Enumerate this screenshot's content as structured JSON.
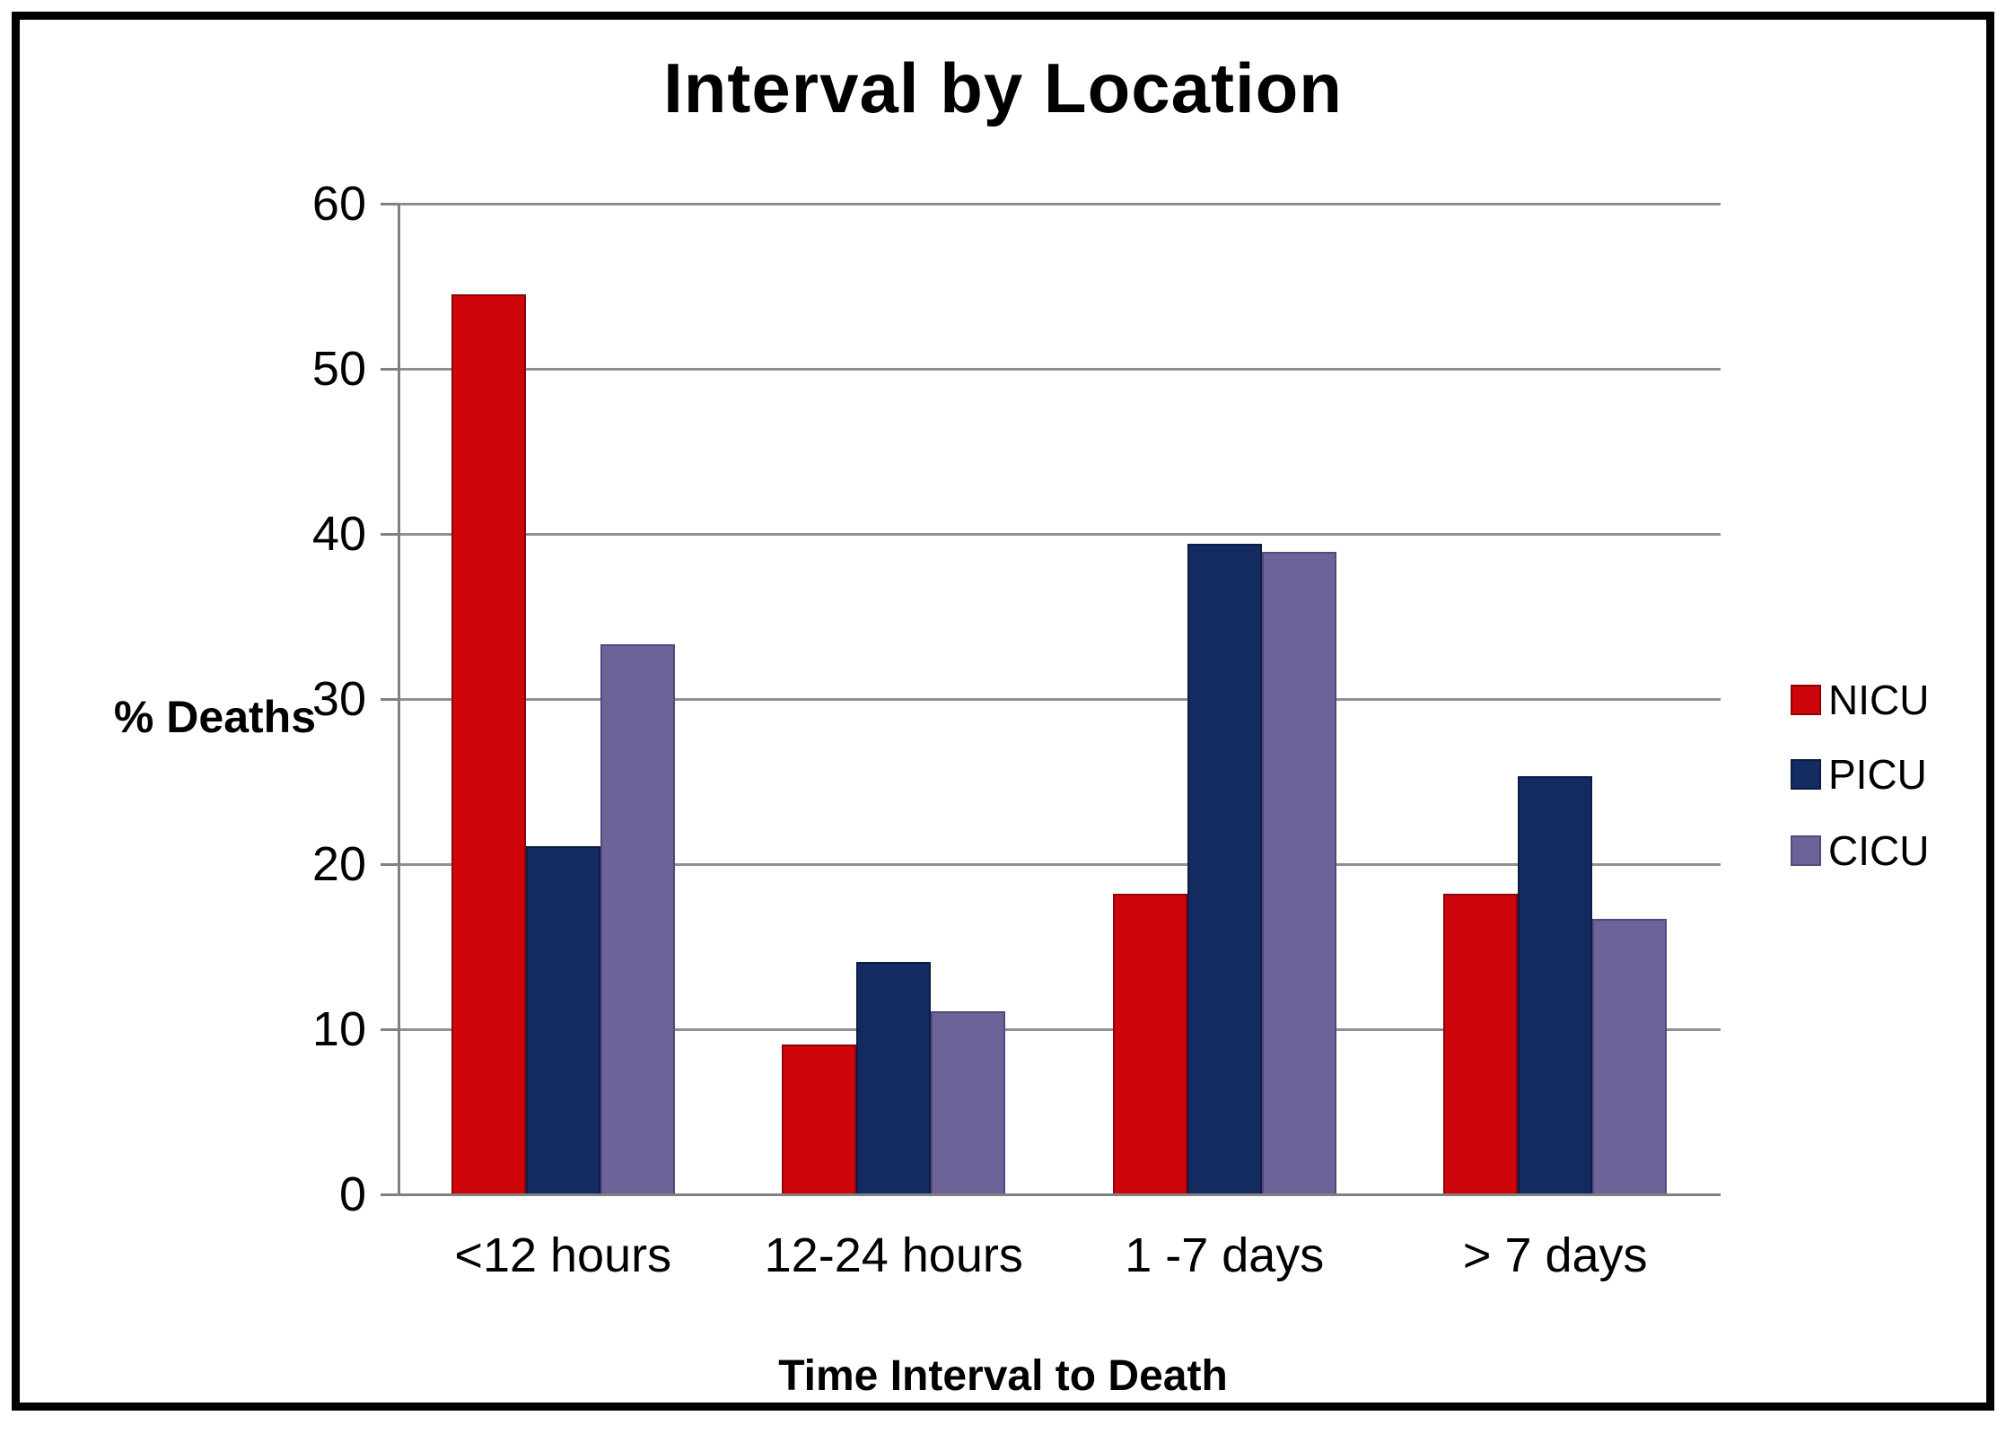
{
  "chart_data": {
    "type": "bar",
    "title": "Interval by Location",
    "xlabel": "Time Interval to Death",
    "ylabel": "% Deaths",
    "categories": [
      "<12 hours",
      "12-24 hours",
      "1 -7 days",
      "> 7 days"
    ],
    "series": [
      {
        "name": "NICU",
        "color": "#CE060C",
        "border": "#8F0408",
        "values": [
          54.5,
          9.1,
          18.2,
          18.2
        ]
      },
      {
        "name": "PICU",
        "color": "#132B61",
        "border": "#0C1D45",
        "values": [
          21.1,
          14.1,
          39.4,
          25.3
        ]
      },
      {
        "name": "CICU",
        "color": "#6E6399",
        "border": "#55487C",
        "values": [
          33.3,
          11.1,
          38.9,
          16.7
        ]
      }
    ],
    "ylim": [
      0,
      60
    ],
    "yticks": [
      0,
      10,
      20,
      30,
      40,
      50,
      60
    ],
    "grid": "horizontal",
    "legend_position": "right"
  },
  "colors": {
    "gridline": "#909090",
    "axis": "#808080",
    "frame": "#000000",
    "background": "#FFFFFF",
    "text": "#000000"
  }
}
